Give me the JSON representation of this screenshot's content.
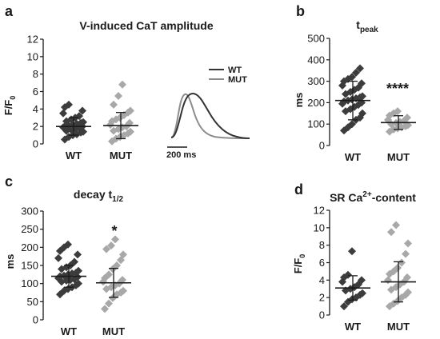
{
  "panels": [
    {
      "id": "a",
      "label": "a",
      "title": "V-induced CaT amplitude",
      "ylabel": "F/F₀",
      "ylabel_main": "F/F",
      "ylabel_sub": "0",
      "significance": "",
      "yticks": [
        "0",
        "2",
        "4",
        "6",
        "8",
        "10",
        "12"
      ]
    },
    {
      "id": "b",
      "label": "b",
      "title": "t",
      "title_sub": "peak",
      "ylabel": "ms",
      "significance": "****",
      "yticks": [
        "0",
        "100",
        "200",
        "300",
        "400",
        "500"
      ]
    },
    {
      "id": "c",
      "label": "c",
      "title": "decay t",
      "title_sub": "1/2",
      "ylabel": "ms",
      "significance": "*",
      "yticks": [
        "0",
        "50",
        "100",
        "150",
        "200",
        "250",
        "300"
      ]
    },
    {
      "id": "d",
      "label": "d",
      "title": "SR Ca",
      "title_sup": "2+",
      "title_rest": "-content",
      "ylabel": "F/F₀",
      "ylabel_main": "F/F",
      "ylabel_sub": "0",
      "significance": "",
      "yticks": [
        "0",
        "2",
        "4",
        "6",
        "8",
        "10",
        "12"
      ]
    }
  ],
  "inset": {
    "legend": [
      "WT",
      "MUT"
    ],
    "scale_bar": "200 ms",
    "colors": {
      "WT": "#333333",
      "MUT": "#8c8c8c"
    }
  },
  "colors": {
    "WT": "#3c3c3c",
    "MUT": "#a8a8a8",
    "axis": "#1a1a1a"
  },
  "chart_data": [
    {
      "type": "scatter",
      "title": "V-induced CaT amplitude",
      "ylabel": "F/F0",
      "ylim": [
        0,
        12
      ],
      "categories": [
        "WT",
        "MUT"
      ],
      "series": [
        {
          "name": "WT",
          "mean": 2.0,
          "sd": 1.0,
          "values": [
            0.5,
            0.8,
            1.0,
            1.1,
            1.3,
            1.4,
            1.5,
            1.6,
            1.7,
            1.8,
            1.9,
            2.0,
            2.0,
            2.1,
            2.2,
            2.3,
            2.4,
            2.5,
            2.6,
            2.8,
            3.0,
            3.2,
            3.5,
            3.8,
            4.2,
            4.5
          ]
        },
        {
          "name": "MUT",
          "mean": 2.1,
          "sd": 1.5,
          "values": [
            0.3,
            0.6,
            0.8,
            1.0,
            1.2,
            1.4,
            1.5,
            1.7,
            1.9,
            2.0,
            2.2,
            2.4,
            2.6,
            2.8,
            3.0,
            3.3,
            3.6,
            3.8,
            4.5,
            5.5,
            6.8
          ]
        }
      ]
    },
    {
      "type": "scatter",
      "title": "tpeak",
      "ylabel": "ms",
      "ylim": [
        0,
        500
      ],
      "categories": [
        "WT",
        "MUT"
      ],
      "series": [
        {
          "name": "WT",
          "mean": 210,
          "sd": 90,
          "values": [
            70,
            85,
            100,
            120,
            130,
            150,
            160,
            170,
            180,
            190,
            195,
            200,
            205,
            210,
            215,
            220,
            225,
            230,
            240,
            250,
            260,
            270,
            280,
            290,
            300,
            310,
            320,
            340,
            360
          ]
        },
        {
          "name": "MUT",
          "mean": 107,
          "sd": 32,
          "values": [
            65,
            75,
            80,
            85,
            90,
            95,
            100,
            105,
            110,
            115,
            120,
            130,
            140,
            150,
            160
          ]
        }
      ]
    },
    {
      "type": "scatter",
      "title": "decay t1/2",
      "ylabel": "ms",
      "ylim": [
        0,
        300
      ],
      "categories": [
        "WT",
        "MUT"
      ],
      "series": [
        {
          "name": "WT",
          "mean": 120,
          "sd": 30,
          "values": [
            70,
            80,
            85,
            90,
            95,
            100,
            105,
            108,
            110,
            112,
            115,
            118,
            120,
            122,
            125,
            128,
            130,
            135,
            140,
            145,
            150,
            160,
            170,
            180,
            190,
            200,
            208
          ]
        },
        {
          "name": "MUT",
          "mean": 102,
          "sd": 40,
          "values": [
            30,
            45,
            60,
            70,
            75,
            80,
            85,
            90,
            95,
            100,
            105,
            110,
            115,
            125,
            140,
            150,
            165,
            180,
            195,
            205,
            222
          ]
        }
      ]
    },
    {
      "type": "scatter",
      "title": "SR Ca2+-content",
      "ylabel": "F/F0",
      "ylim": [
        0,
        12
      ],
      "categories": [
        "WT",
        "MUT"
      ],
      "series": [
        {
          "name": "WT",
          "mean": 3.1,
          "sd": 1.4,
          "values": [
            1.0,
            1.5,
            1.8,
            2.0,
            2.3,
            2.5,
            2.8,
            3.0,
            3.2,
            3.5,
            3.8,
            4.0,
            4.3,
            4.6,
            7.3
          ]
        },
        {
          "name": "MUT",
          "mean": 3.8,
          "sd": 2.3,
          "values": [
            1.0,
            1.3,
            1.6,
            2.0,
            2.3,
            2.6,
            2.9,
            3.2,
            3.5,
            3.8,
            4.0,
            4.3,
            4.7,
            5.0,
            5.4,
            6.0,
            7.0,
            8.2,
            9.5,
            10.3
          ]
        }
      ]
    }
  ]
}
